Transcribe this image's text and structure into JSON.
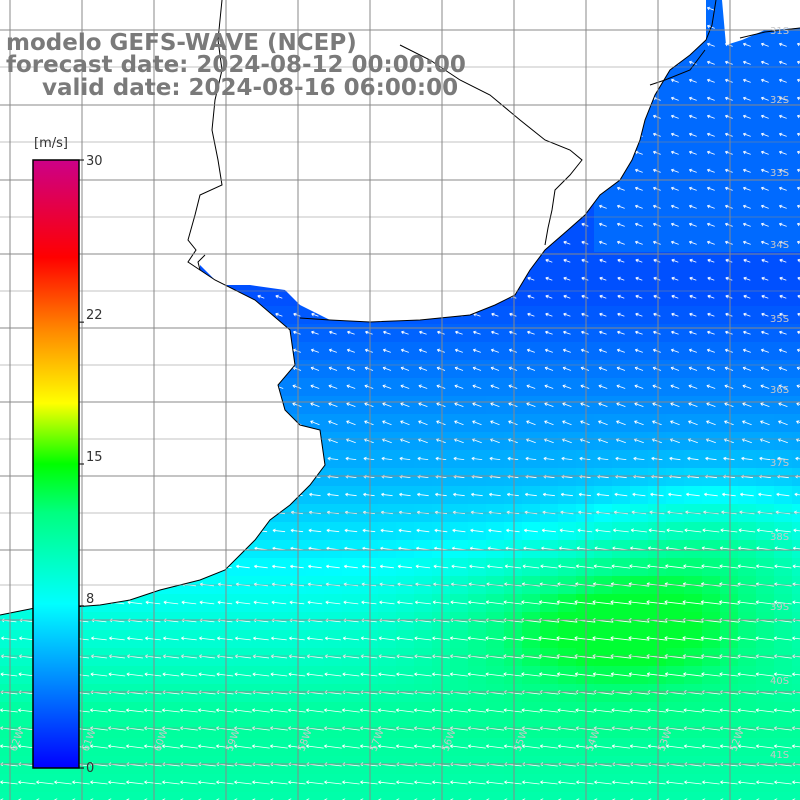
{
  "header": {
    "line1": "modelo GEFS-WAVE (NCEP)",
    "line2": "forecast date: 2024-08-12 00:00:00",
    "line3": "valid date: 2024-08-16 06:00:00"
  },
  "colorbar": {
    "unit": "[m/s]",
    "ticks": [
      "30",
      "22",
      "15",
      "8",
      "0"
    ],
    "tick_values": [
      30,
      22,
      15,
      8,
      0
    ],
    "min": 0,
    "max": 30,
    "colors": [
      "#0000ff",
      "#00aaff",
      "#00ffff",
      "#00ff00",
      "#ffff00",
      "#ff8800",
      "#ff0000",
      "#cc0088"
    ]
  },
  "lat_labels": [
    "31S",
    "32S",
    "33S",
    "34S",
    "35S",
    "36S",
    "37S",
    "38S",
    "39S",
    "40S",
    "41S"
  ],
  "lon_labels": [
    "62W",
    "61W",
    "60W",
    "59W",
    "58W",
    "57W",
    "56W",
    "55W",
    "54W",
    "53W",
    "52W"
  ],
  "colors": {
    "land": "#ffffff",
    "grid": "#888888",
    "coast": "#000000",
    "arrows": "#ffffff",
    "title": "#7a7a7a"
  }
}
